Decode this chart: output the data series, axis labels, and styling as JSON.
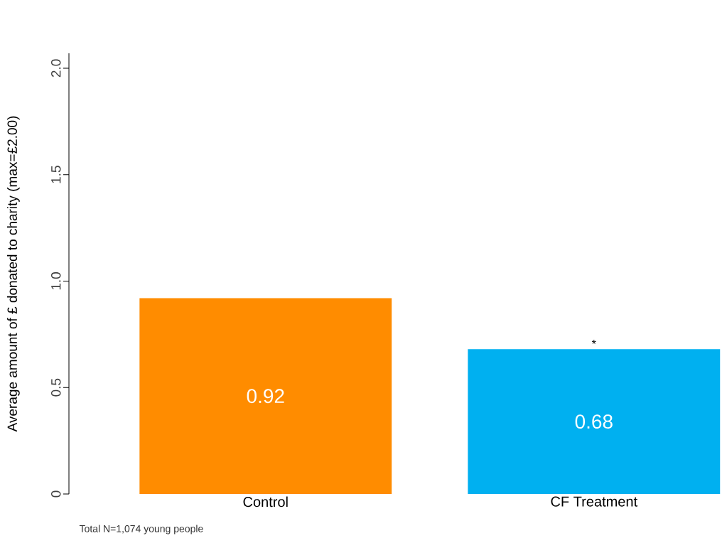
{
  "chart_data": {
    "type": "bar",
    "ylabel": "Average amount of £ donated to charity (max=£2.00)",
    "categories": [
      "Control",
      "CF Treatment"
    ],
    "values": [
      0.92,
      0.68
    ],
    "colors": [
      "#ff8c00",
      "#00b0f0"
    ],
    "ylim": [
      0,
      2.07
    ],
    "yticks": [
      0,
      0.5,
      {
        "value": 1,
        "label": "1.0"
      },
      {
        "value": 1.5,
        "label": "1.5"
      },
      {
        "value": 2,
        "label": "2.0"
      }
    ],
    "data_labels": true,
    "grid": false,
    "annotations": [
      {
        "text": "*",
        "x": "CF Treatment",
        "y": 0.68
      },
      "Total N=1,074 young people"
    ]
  }
}
